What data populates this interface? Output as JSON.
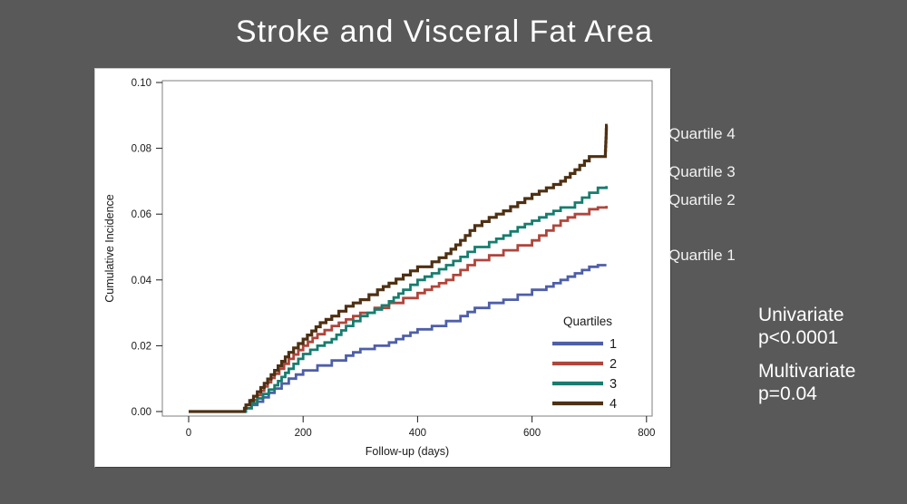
{
  "slide": {
    "title": "Stroke and Visceral Fat Area",
    "background_color": "#595959",
    "annotations": {
      "curve_labels": [
        {
          "label": "Quartile 4"
        },
        {
          "label": "Quartile 3"
        },
        {
          "label": "Quartile 2"
        },
        {
          "label": "Quartile 1"
        }
      ],
      "stats": {
        "univariate_label": "Univariate",
        "univariate_p": "p<0.0001",
        "multivariate_label": "Multivariate",
        "multivariate_p": "p=0.04"
      }
    }
  },
  "chart_data": {
    "type": "line",
    "subtype": "step-cumulative-incidence",
    "title": "",
    "xlabel": "Follow-up (days)",
    "ylabel": "Cumulative Incidence",
    "xlim": [
      0,
      800
    ],
    "ylim": [
      0,
      0.1
    ],
    "xticks": [
      0,
      200,
      400,
      600,
      800
    ],
    "yticks": [
      0.0,
      0.02,
      0.04,
      0.06,
      0.08,
      0.1
    ],
    "grid": false,
    "axis_color": "#1a1a1a",
    "box_color": "#7f7f7f",
    "legend": {
      "title": "Quartiles",
      "position": "inside-bottom-right",
      "entries": [
        {
          "label": "1",
          "color": "#4e5fa8"
        },
        {
          "label": "2",
          "color": "#b0453c"
        },
        {
          "label": "3",
          "color": "#177d6e"
        },
        {
          "label": "4",
          "color": "#4e3013"
        }
      ]
    },
    "series": [
      {
        "name": "1",
        "quartile": "Quartile 1",
        "color": "#4e5fa8",
        "points": [
          [
            0,
            0
          ],
          [
            95,
            0
          ],
          [
            100,
            0.001
          ],
          [
            120,
            0.003
          ],
          [
            150,
            0.007
          ],
          [
            175,
            0.01
          ],
          [
            200,
            0.0125
          ],
          [
            225,
            0.014
          ],
          [
            250,
            0.0155
          ],
          [
            275,
            0.017
          ],
          [
            300,
            0.019
          ],
          [
            325,
            0.02
          ],
          [
            350,
            0.021
          ],
          [
            375,
            0.023
          ],
          [
            400,
            0.025
          ],
          [
            425,
            0.026
          ],
          [
            450,
            0.0275
          ],
          [
            475,
            0.029
          ],
          [
            500,
            0.0315
          ],
          [
            525,
            0.033
          ],
          [
            550,
            0.034
          ],
          [
            575,
            0.0355
          ],
          [
            600,
            0.037
          ],
          [
            625,
            0.038
          ],
          [
            650,
            0.04
          ],
          [
            675,
            0.042
          ],
          [
            700,
            0.044
          ],
          [
            715,
            0.0445
          ],
          [
            730,
            0.0445
          ]
        ]
      },
      {
        "name": "2",
        "quartile": "Quartile 2",
        "color": "#b0453c",
        "points": [
          [
            0,
            0
          ],
          [
            95,
            0
          ],
          [
            100,
            0.002
          ],
          [
            120,
            0.005
          ],
          [
            150,
            0.0115
          ],
          [
            175,
            0.016
          ],
          [
            200,
            0.02
          ],
          [
            225,
            0.0235
          ],
          [
            250,
            0.026
          ],
          [
            275,
            0.028
          ],
          [
            300,
            0.03
          ],
          [
            325,
            0.0315
          ],
          [
            350,
            0.033
          ],
          [
            375,
            0.0345
          ],
          [
            400,
            0.036
          ],
          [
            425,
            0.038
          ],
          [
            450,
            0.04
          ],
          [
            475,
            0.043
          ],
          [
            500,
            0.046
          ],
          [
            525,
            0.0475
          ],
          [
            550,
            0.049
          ],
          [
            575,
            0.0505
          ],
          [
            600,
            0.052
          ],
          [
            625,
            0.055
          ],
          [
            650,
            0.058
          ],
          [
            675,
            0.06
          ],
          [
            700,
            0.0615
          ],
          [
            715,
            0.062
          ],
          [
            730,
            0.0625
          ]
        ]
      },
      {
        "name": "3",
        "quartile": "Quartile 3",
        "color": "#177d6e",
        "points": [
          [
            0,
            0
          ],
          [
            95,
            0
          ],
          [
            100,
            0.001
          ],
          [
            120,
            0.004
          ],
          [
            150,
            0.008
          ],
          [
            175,
            0.013
          ],
          [
            200,
            0.0175
          ],
          [
            225,
            0.02
          ],
          [
            250,
            0.022
          ],
          [
            275,
            0.026
          ],
          [
            300,
            0.029
          ],
          [
            325,
            0.031
          ],
          [
            350,
            0.0335
          ],
          [
            375,
            0.037
          ],
          [
            400,
            0.04
          ],
          [
            425,
            0.042
          ],
          [
            450,
            0.0445
          ],
          [
            475,
            0.047
          ],
          [
            500,
            0.05
          ],
          [
            525,
            0.0515
          ],
          [
            550,
            0.0535
          ],
          [
            575,
            0.056
          ],
          [
            600,
            0.058
          ],
          [
            625,
            0.06
          ],
          [
            650,
            0.062
          ],
          [
            675,
            0.0635
          ],
          [
            700,
            0.0665
          ],
          [
            715,
            0.068
          ],
          [
            730,
            0.0685
          ]
        ]
      },
      {
        "name": "4",
        "quartile": "Quartile 4",
        "color": "#4e3013",
        "points": [
          [
            0,
            0
          ],
          [
            95,
            0
          ],
          [
            100,
            0.002
          ],
          [
            120,
            0.006
          ],
          [
            150,
            0.0125
          ],
          [
            175,
            0.018
          ],
          [
            200,
            0.022
          ],
          [
            230,
            0.027
          ],
          [
            250,
            0.029
          ],
          [
            275,
            0.032
          ],
          [
            300,
            0.034
          ],
          [
            330,
            0.037
          ],
          [
            350,
            0.039
          ],
          [
            375,
            0.0415
          ],
          [
            400,
            0.044
          ],
          [
            425,
            0.0455
          ],
          [
            450,
            0.048
          ],
          [
            475,
            0.052
          ],
          [
            500,
            0.0565
          ],
          [
            525,
            0.059
          ],
          [
            550,
            0.061
          ],
          [
            575,
            0.0635
          ],
          [
            600,
            0.066
          ],
          [
            625,
            0.068
          ],
          [
            650,
            0.07
          ],
          [
            675,
            0.0735
          ],
          [
            700,
            0.0775
          ],
          [
            728,
            0.078
          ],
          [
            730,
            0.087
          ],
          [
            732,
            0.087
          ]
        ]
      }
    ]
  }
}
